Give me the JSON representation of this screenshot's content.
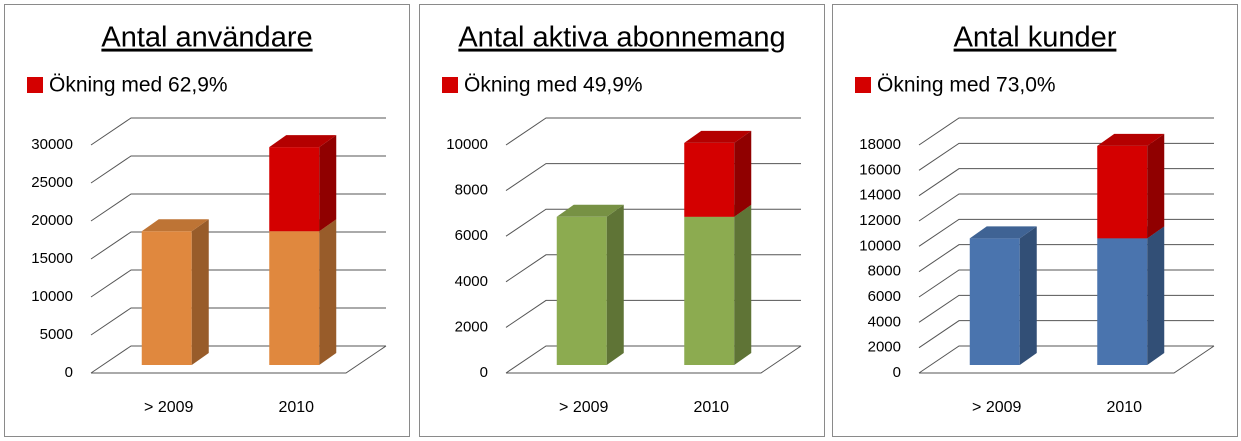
{
  "chart_data": [
    {
      "type": "bar3d-stacked",
      "title": "Antal användare",
      "categories": [
        "> 2009",
        "2010"
      ],
      "ylim": [
        0,
        30000
      ],
      "yticks": [
        0,
        5000,
        10000,
        15000,
        20000,
        25000,
        30000
      ],
      "grid": true,
      "series": [
        {
          "color": "#e0883e",
          "values": [
            17600,
            17600
          ]
        },
        {
          "name": "Ökning med 62,9%",
          "color": "#d40000",
          "values": [
            null,
            11070
          ]
        }
      ]
    },
    {
      "type": "bar3d-stacked",
      "title": "Antal aktiva abonnemang",
      "categories": [
        "> 2009",
        "2010"
      ],
      "ylim": [
        0,
        10000
      ],
      "yticks": [
        0,
        2000,
        4000,
        6000,
        8000,
        10000
      ],
      "grid": true,
      "series": [
        {
          "color": "#8cab50",
          "values": [
            6500,
            6500
          ]
        },
        {
          "name": "Ökning med 49,9%",
          "color": "#d40000",
          "values": [
            null,
            3240
          ]
        }
      ]
    },
    {
      "type": "bar3d-stacked",
      "title": "Antal kunder",
      "categories": [
        "> 2009",
        "2010"
      ],
      "ylim": [
        0,
        18000
      ],
      "yticks": [
        0,
        2000,
        4000,
        6000,
        8000,
        10000,
        12000,
        14000,
        16000,
        18000
      ],
      "grid": true,
      "series": [
        {
          "color": "#4a74ae",
          "values": [
            10000,
            10000
          ]
        },
        {
          "name": "Ökning med 73,0%",
          "color": "#d40000",
          "values": [
            null,
            7300
          ]
        }
      ]
    }
  ]
}
